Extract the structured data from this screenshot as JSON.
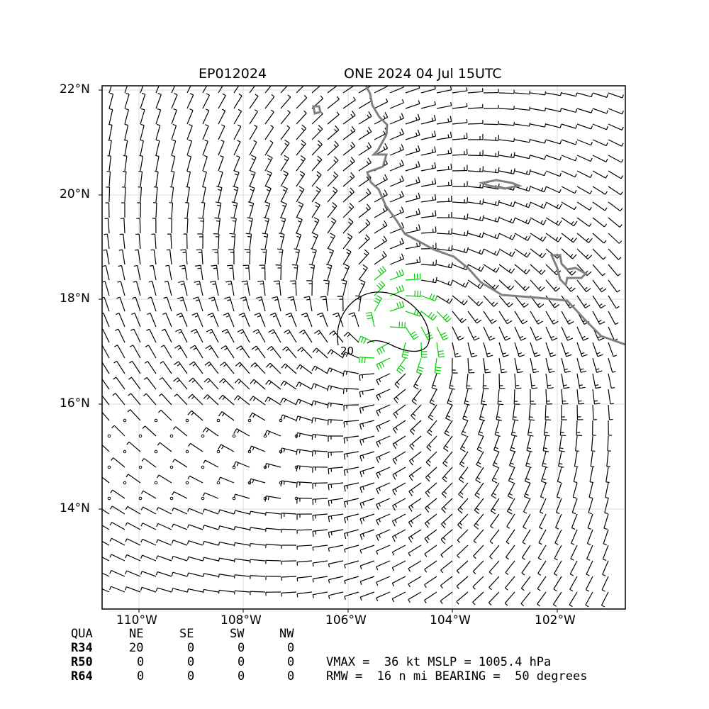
{
  "header": {
    "storm_id": "EP012024",
    "storm_time": "ONE 2024 04 Jul 15UTC"
  },
  "axes": {
    "lat_labels": [
      "22°N",
      "20°N",
      "18°N",
      "16°N",
      "14°N"
    ],
    "lon_labels": [
      "110°W",
      "108°W",
      "106°W",
      "104°W",
      "102°W"
    ],
    "contour_label": "20"
  },
  "quadrant_table": {
    "headers": [
      "QUA",
      "NE",
      "SE",
      "SW",
      "NW"
    ],
    "rows": [
      {
        "label": "R34",
        "values": [
          "20",
          "0",
          "0",
          "0"
        ]
      },
      {
        "label": "R50",
        "values": [
          "0",
          "0",
          "0",
          "0"
        ]
      },
      {
        "label": "R64",
        "values": [
          "0",
          "0",
          "0",
          "0"
        ]
      }
    ]
  },
  "stats": {
    "line1": "VMAX =  36 kt MSLP = 1005.4 hPa",
    "line2": "RMW =  16 n mi BEARING =  50 degrees"
  },
  "colors": {
    "barb": "#000000",
    "barb_strong": "#00cc00",
    "coastline": "#808080",
    "grid": "#dddddd"
  }
}
